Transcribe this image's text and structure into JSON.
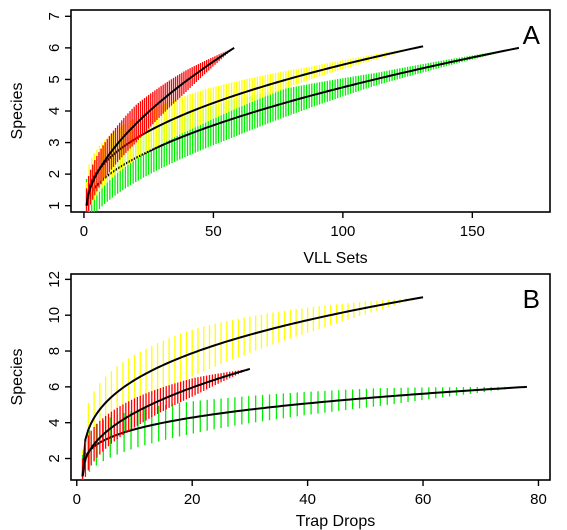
{
  "chart_data": [
    {
      "type": "line",
      "panel_label": "A",
      "xlabel": "VLL Sets",
      "ylabel": "Species",
      "xlim": [
        -5,
        180
      ],
      "ylim": [
        0.8,
        7.2
      ],
      "xticks": [
        0,
        50,
        100,
        150
      ],
      "yticks": [
        1,
        2,
        3,
        4,
        5,
        6,
        7
      ],
      "grid": false,
      "series": [
        {
          "color": "#00ee00",
          "x_end": 168,
          "y_end": 6.0,
          "shape": 0.55,
          "band": [
            0.85,
            0.6,
            0.2,
            0.0
          ],
          "band_step": 1.0
        },
        {
          "color": "#ffff00",
          "x_end": 131,
          "y_end": 6.05,
          "shape": 0.45,
          "band": [
            0.75,
            0.55,
            0.2,
            0.0
          ],
          "band_step": 1.0
        },
        {
          "color": "#ff0000",
          "x_end": 58,
          "y_end": 6.0,
          "shape": 0.6,
          "band": [
            0.55,
            0.6,
            0.35,
            0.0
          ],
          "band_step": 0.8
        }
      ]
    },
    {
      "type": "line",
      "panel_label": "B",
      "xlabel": "Trap Drops",
      "ylabel": "Species",
      "xlim": [
        -1,
        82
      ],
      "ylim": [
        0.8,
        12.3
      ],
      "xticks": [
        0,
        20,
        40,
        60,
        80
      ],
      "yticks": [
        2,
        4,
        6,
        8,
        10,
        12
      ],
      "grid": false,
      "series": [
        {
          "color": "#ffff00",
          "x_end": 60,
          "y_end": 11.0,
          "shape": 0.33,
          "band": [
            1.5,
            1.3,
            0.7,
            0.0
          ],
          "band_step": 1.0
        },
        {
          "color": "#00ee00",
          "x_end": 78,
          "y_end": 6.0,
          "shape": 0.3,
          "band": [
            1.2,
            0.8,
            0.5,
            0.0
          ],
          "band_step": 1.2
        },
        {
          "color": "#ff0000",
          "x_end": 30,
          "y_end": 7.0,
          "shape": 0.45,
          "band": [
            1.0,
            0.8,
            0.5,
            0.0
          ],
          "band_step": 0.5
        }
      ]
    }
  ]
}
